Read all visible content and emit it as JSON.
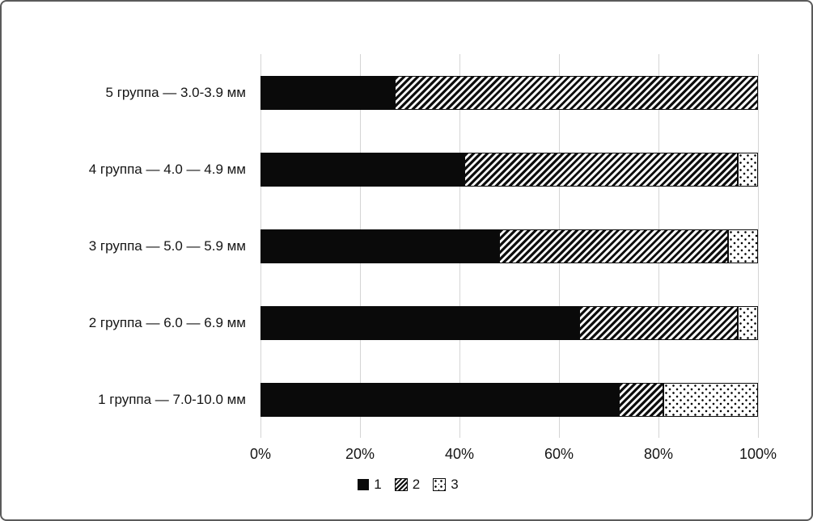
{
  "chart_data": {
    "type": "bar",
    "orientation": "horizontal",
    "stacked": true,
    "units": "percent",
    "title": "",
    "xlabel": "",
    "ylabel": "",
    "xlim": [
      0,
      100
    ],
    "grid": "vertical",
    "legend_position": "bottom",
    "categories": [
      "5 группа — 3.0-3.9 мм",
      "4 группа — 4.0 — 4.9 мм",
      "3 группа — 5.0 — 5.9 мм",
      "2 группа — 6.0 — 6.9 мм",
      "1 группа — 7.0-10.0 мм"
    ],
    "series": [
      {
        "name": "1",
        "pattern": "solid-black",
        "values": [
          27,
          41,
          48,
          64,
          72
        ]
      },
      {
        "name": "2",
        "pattern": "diagonal-hatch",
        "values": [
          73,
          55,
          46,
          32,
          9
        ]
      },
      {
        "name": "3",
        "pattern": "dot-speckle",
        "values": [
          0,
          4,
          6,
          4,
          19
        ]
      }
    ],
    "x_ticks": [
      "0%",
      "20%",
      "40%",
      "60%",
      "80%",
      "100%"
    ]
  },
  "colors": {
    "bar_black": "#0a0a0a",
    "gridline": "#d4d4d4",
    "text": "#151515",
    "background": "#ffffff",
    "frame_border": "#5a5a5a"
  }
}
